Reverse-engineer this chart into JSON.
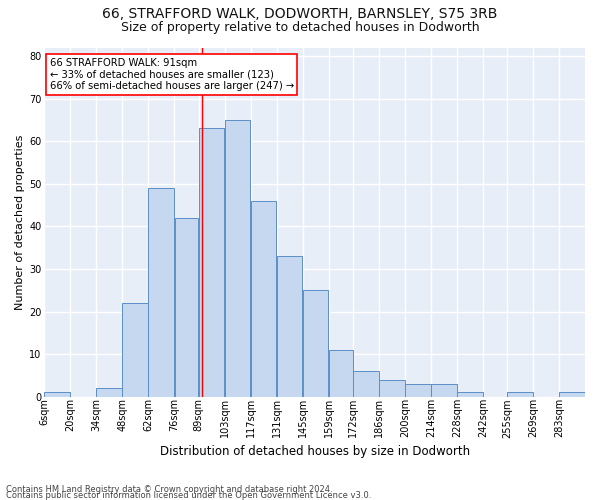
{
  "title1": "66, STRAFFORD WALK, DODWORTH, BARNSLEY, S75 3RB",
  "title2": "Size of property relative to detached houses in Dodworth",
  "xlabel": "Distribution of detached houses by size in Dodworth",
  "ylabel": "Number of detached properties",
  "footnote1": "Contains HM Land Registry data © Crown copyright and database right 2024.",
  "footnote2": "Contains public sector information licensed under the Open Government Licence v3.0.",
  "bar_labels": [
    "6sqm",
    "20sqm",
    "34sqm",
    "48sqm",
    "62sqm",
    "76sqm",
    "89sqm",
    "103sqm",
    "117sqm",
    "131sqm",
    "145sqm",
    "159sqm",
    "172sqm",
    "186sqm",
    "200sqm",
    "214sqm",
    "228sqm",
    "242sqm",
    "255sqm",
    "269sqm",
    "283sqm"
  ],
  "bar_values": [
    1,
    0,
    2,
    22,
    49,
    42,
    63,
    65,
    46,
    33,
    25,
    11,
    6,
    4,
    3,
    3,
    1,
    0,
    1,
    0,
    1
  ],
  "bar_color": "#c5d8f0",
  "bar_edge_color": "#5b8fc7",
  "bin_edges": [
    6,
    20,
    34,
    48,
    62,
    76,
    89,
    103,
    117,
    131,
    145,
    159,
    172,
    186,
    200,
    214,
    228,
    242,
    255,
    269,
    283,
    297
  ],
  "annotation_box_text": "66 STRAFFORD WALK: 91sqm\n← 33% of detached houses are smaller (123)\n66% of semi-detached houses are larger (247) →",
  "vline_x": 91,
  "ylim": [
    0,
    82
  ],
  "yticks": [
    0,
    10,
    20,
    30,
    40,
    50,
    60,
    70,
    80
  ],
  "fig_bg_color": "#ffffff",
  "ax_bg_color": "#e8eef8",
  "grid_color": "#ffffff",
  "title1_fontsize": 10,
  "title2_fontsize": 9,
  "ylabel_fontsize": 8,
  "xlabel_fontsize": 8.5,
  "tick_fontsize": 7,
  "footnote_fontsize": 6
}
